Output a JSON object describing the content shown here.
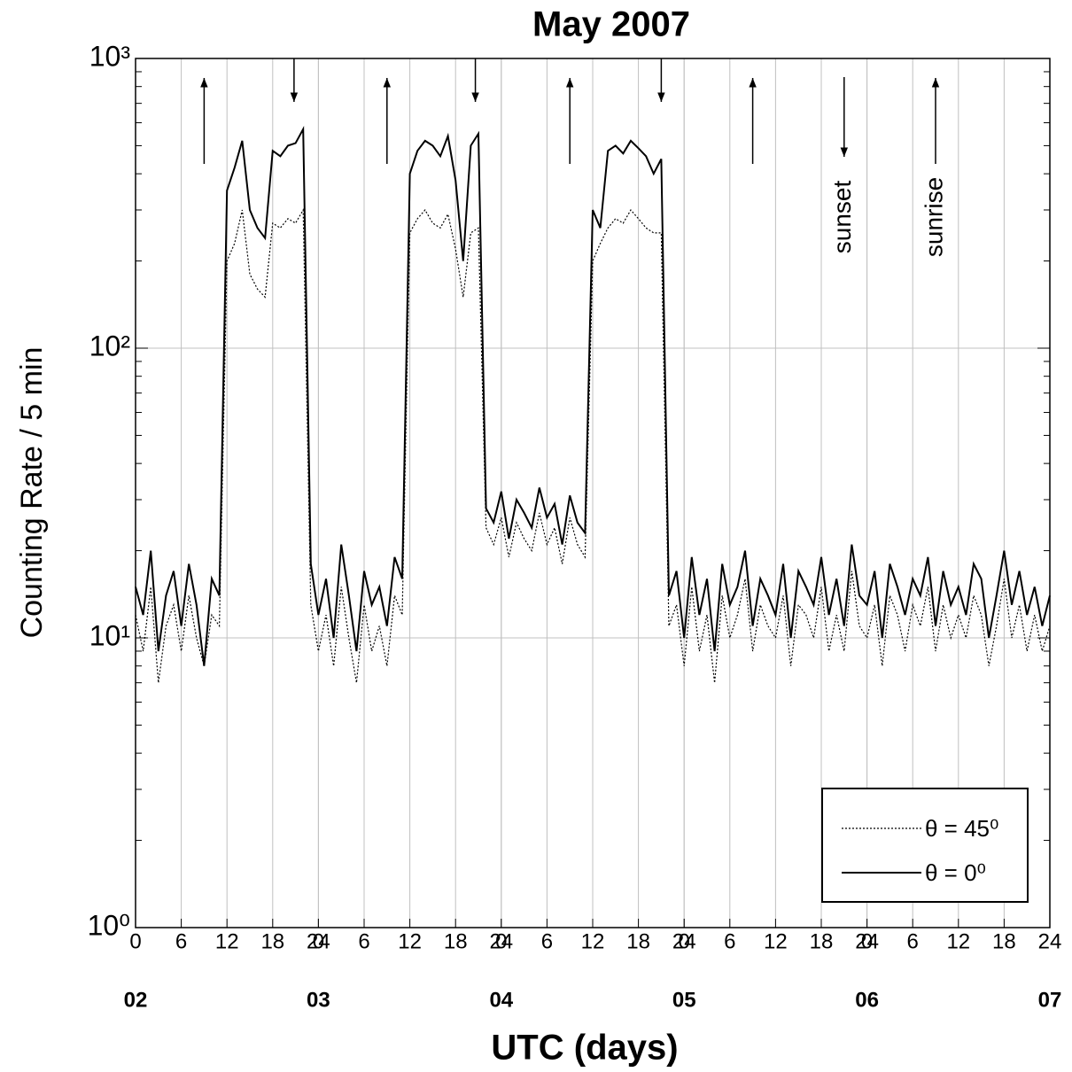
{
  "chart_data": {
    "type": "line",
    "title": "May   2007",
    "xlabel": "UTC  (days)",
    "ylabel": "Counting Rate / 5 min",
    "log_y": true,
    "grid": true,
    "legend": "lower right",
    "xlim": [
      0,
      120
    ],
    "ylim": [
      1,
      1000
    ],
    "yticks": [
      {
        "value": 1,
        "label": "10⁰"
      },
      {
        "value": 10,
        "label": "10¹"
      },
      {
        "value": 100,
        "label": "10²"
      },
      {
        "value": 1000,
        "label": "10³"
      }
    ],
    "xticks": [
      0,
      6,
      12,
      18,
      24,
      {
        "value": 24,
        "label": "0"
      },
      {
        "value": 30,
        "label": "6"
      },
      {
        "value": 36,
        "label": "12"
      },
      {
        "value": 42,
        "label": "18"
      },
      {
        "value": 48,
        "label": "24"
      },
      {
        "value": 48,
        "label": "0"
      },
      {
        "value": 54,
        "label": "6"
      },
      {
        "value": 60,
        "label": "12"
      },
      {
        "value": 66,
        "label": "18"
      },
      {
        "value": 72,
        "label": "24"
      },
      {
        "value": 72,
        "label": "0"
      },
      {
        "value": 78,
        "label": "6"
      },
      {
        "value": 84,
        "label": "12"
      },
      {
        "value": 90,
        "label": "18"
      },
      {
        "value": 96,
        "label": "24"
      },
      {
        "value": 96,
        "label": "0"
      },
      {
        "value": 102,
        "label": "6"
      },
      {
        "value": 108,
        "label": "12"
      },
      {
        "value": 114,
        "label": "18"
      },
      {
        "value": 120,
        "label": "24"
      }
    ],
    "day_labels": [
      {
        "value": 0,
        "label": "02"
      },
      {
        "value": 24,
        "label": "03"
      },
      {
        "value": 48,
        "label": "04"
      },
      {
        "value": 72,
        "label": "05"
      },
      {
        "value": 96,
        "label": "06"
      },
      {
        "value": 120,
        "label": "07"
      }
    ],
    "annotations": [
      {
        "text": "sunset",
        "x": 93
      },
      {
        "text": "sunrise",
        "x": 105
      }
    ],
    "sunrise_x": [
      9,
      33,
      57,
      81,
      105
    ],
    "sunset_x": [
      20.8,
      44.6,
      69,
      93
    ],
    "x": [
      0,
      1,
      2,
      3,
      4,
      5,
      6,
      7,
      8,
      9,
      10,
      11,
      12,
      13,
      14,
      15,
      16,
      17,
      18,
      19,
      20,
      21,
      22,
      23,
      24,
      25,
      26,
      27,
      28,
      29,
      30,
      31,
      32,
      33,
      34,
      35,
      36,
      37,
      38,
      39,
      40,
      41,
      42,
      43,
      44,
      45,
      46,
      47,
      48,
      49,
      50,
      51,
      52,
      53,
      54,
      55,
      56,
      57,
      58,
      59,
      60,
      61,
      62,
      63,
      64,
      65,
      66,
      67,
      68,
      69,
      70,
      71,
      72,
      73,
      74,
      75,
      76,
      77,
      78,
      79,
      80,
      81,
      82,
      83,
      84,
      85,
      86,
      87,
      88,
      89,
      90,
      91,
      92,
      93,
      94,
      95,
      96,
      97,
      98,
      99,
      100,
      101,
      102,
      103,
      104,
      105,
      106,
      107,
      108,
      109,
      110,
      111,
      112,
      113,
      114,
      115,
      116,
      117,
      118,
      119,
      120
    ],
    "series": [
      {
        "name": "θ = 45⁰",
        "color": "#000000",
        "dash": true,
        "values": [
          12,
          9,
          15,
          7,
          11,
          13,
          9,
          14,
          10,
          8,
          12,
          11,
          200,
          230,
          300,
          180,
          160,
          150,
          270,
          260,
          280,
          270,
          300,
          13,
          9,
          12,
          8,
          15,
          10,
          7,
          13,
          9,
          11,
          8,
          14,
          12,
          250,
          280,
          300,
          270,
          260,
          290,
          220,
          150,
          250,
          260,
          24,
          21,
          26,
          19,
          25,
          22,
          20,
          27,
          21,
          24,
          18,
          26,
          21,
          19,
          200,
          230,
          260,
          280,
          270,
          300,
          280,
          260,
          250,
          250,
          11,
          13,
          8,
          15,
          9,
          12,
          7,
          14,
          10,
          12,
          16,
          9,
          13,
          11,
          10,
          14,
          8,
          13,
          12,
          10,
          15,
          9,
          12,
          9,
          17,
          11,
          10,
          13,
          8,
          14,
          12,
          9,
          13,
          11,
          15,
          9,
          13,
          10,
          12,
          10,
          14,
          12,
          8,
          11,
          16,
          10,
          13,
          9,
          12,
          9,
          11
        ]
      },
      {
        "name": "θ = 0⁰",
        "color": "#000000",
        "dash": false,
        "values": [
          15,
          12,
          20,
          9,
          14,
          17,
          11,
          18,
          13,
          8,
          16,
          14,
          350,
          420,
          520,
          300,
          260,
          240,
          480,
          460,
          500,
          510,
          570,
          18,
          12,
          16,
          10,
          21,
          14,
          9,
          17,
          13,
          15,
          11,
          19,
          16,
          400,
          480,
          520,
          500,
          460,
          540,
          380,
          200,
          500,
          550,
          28,
          25,
          32,
          22,
          30,
          27,
          24,
          33,
          26,
          29,
          21,
          31,
          25,
          23,
          300,
          260,
          480,
          500,
          470,
          520,
          490,
          460,
          400,
          450,
          14,
          17,
          10,
          19,
          12,
          16,
          9,
          18,
          13,
          15,
          20,
          11,
          16,
          14,
          12,
          18,
          10,
          17,
          15,
          13,
          19,
          12,
          16,
          11,
          21,
          14,
          13,
          17,
          10,
          18,
          15,
          12,
          16,
          14,
          19,
          11,
          17,
          13,
          15,
          12,
          18,
          16,
          10,
          14,
          20,
          13,
          17,
          12,
          15,
          11,
          14
        ]
      }
    ]
  }
}
